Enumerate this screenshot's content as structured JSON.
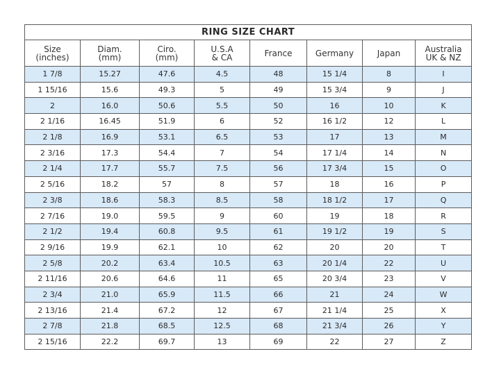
{
  "title": "RING SIZE CHART",
  "headers": [
    [
      "Size",
      "(inches)"
    ],
    [
      "Diam.",
      "(mm)"
    ],
    [
      "Ciro.",
      "(mm)"
    ],
    [
      "U.S.A",
      "& CA"
    ],
    [
      "France",
      ""
    ],
    [
      "Germany",
      ""
    ],
    [
      "Japan",
      ""
    ],
    [
      "Australia",
      "UK & NZ"
    ]
  ],
  "row_colors": {
    "shaded": "#d8e9f8",
    "plain": "#ffffff"
  },
  "rows": [
    [
      "1 7/8",
      "15.27",
      "47.6",
      "4.5",
      "48",
      "15 1/4",
      "8",
      "I"
    ],
    [
      "1 15/16",
      "15.6",
      "49.3",
      "5",
      "49",
      "15 3/4",
      "9",
      "J"
    ],
    [
      "2",
      "16.0",
      "50.6",
      "5.5",
      "50",
      "16",
      "10",
      "K"
    ],
    [
      "2 1/16",
      "16.45",
      "51.9",
      "6",
      "52",
      "16 1/2",
      "12",
      "L"
    ],
    [
      "2 1/8",
      "16.9",
      "53.1",
      "6.5",
      "53",
      "17",
      "13",
      "M"
    ],
    [
      "2 3/16",
      "17.3",
      "54.4",
      "7",
      "54",
      "17 1/4",
      "14",
      "N"
    ],
    [
      "2 1/4",
      "17.7",
      "55.7",
      "7.5",
      "56",
      "17 3/4",
      "15",
      "O"
    ],
    [
      "2 5/16",
      "18.2",
      "57",
      "8",
      "57",
      "18",
      "16",
      "P"
    ],
    [
      "2 3/8",
      "18.6",
      "58.3",
      "8.5",
      "58",
      "18 1/2",
      "17",
      "Q"
    ],
    [
      "2 7/16",
      "19.0",
      "59.5",
      "9",
      "60",
      "19",
      "18",
      "R"
    ],
    [
      "2 1/2",
      "19.4",
      "60.8",
      "9.5",
      "61",
      "19 1/2",
      "19",
      "S"
    ],
    [
      "2 9/16",
      "19.9",
      "62.1",
      "10",
      "62",
      "20",
      "20",
      "T"
    ],
    [
      "2 5/8",
      "20.2",
      "63.4",
      "10.5",
      "63",
      "20 1/4",
      "22",
      "U"
    ],
    [
      "2 11/16",
      "20.6",
      "64.6",
      "11",
      "65",
      "20 3/4",
      "23",
      "V"
    ],
    [
      "2 3/4",
      "21.0",
      "65.9",
      "11.5",
      "66",
      "21",
      "24",
      "W"
    ],
    [
      "2 13/16",
      "21.4",
      "67.2",
      "12",
      "67",
      "21 1/4",
      "25",
      "X"
    ],
    [
      "2 7/8",
      "21.8",
      "68.5",
      "12.5",
      "68",
      "21 3/4",
      "26",
      "Y"
    ],
    [
      "2 15/16",
      "22.2",
      "69.7",
      "13",
      "69",
      "22",
      "27",
      "Z"
    ]
  ]
}
